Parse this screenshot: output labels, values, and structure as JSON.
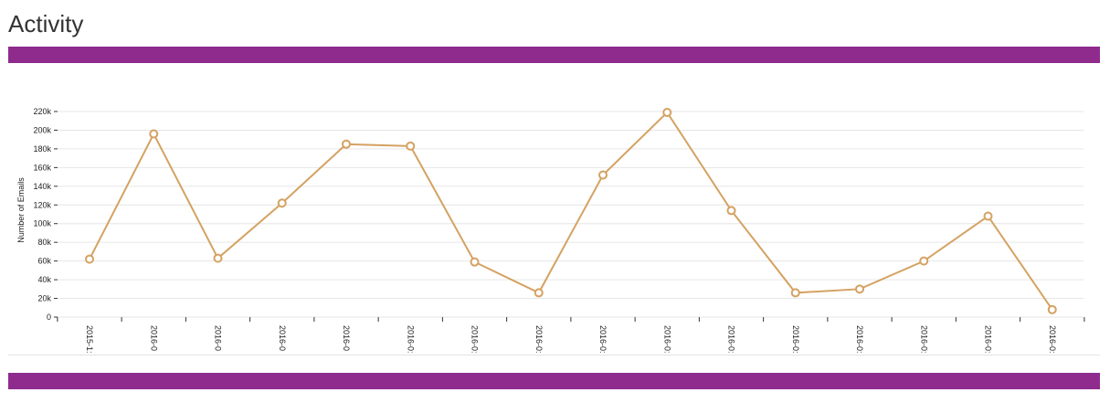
{
  "page": {
    "title": "Activity"
  },
  "colors": {
    "accent": "#8e2b8d",
    "line": "#d4a262",
    "grid": "#e6e6e6"
  },
  "chart_data": {
    "type": "line",
    "title": "",
    "xlabel": "",
    "ylabel": "Number of Emails",
    "ylim": [
      0,
      220000
    ],
    "yticks": [
      0,
      20000,
      40000,
      60000,
      80000,
      100000,
      120000,
      140000,
      160000,
      180000,
      200000,
      220000
    ],
    "ytick_labels": [
      "0",
      "20k",
      "40k",
      "60k",
      "80k",
      "100k",
      "120k",
      "140k",
      "160k",
      "180k",
      "200k",
      "220k"
    ],
    "categories": [
      "2015-1:",
      "2016-0",
      "2016-0",
      "2016-0",
      "2016-0",
      "2016-0:",
      "2016-0:",
      "2016-0:",
      "2016-0:",
      "2016-0:",
      "2016-0:",
      "2016-0:",
      "2016-0:",
      "2016-0:",
      "2016-0:",
      "2016-0:"
    ],
    "series": [
      {
        "name": "Number of Emails",
        "values": [
          62000,
          196000,
          63000,
          122000,
          185000,
          183000,
          59000,
          26000,
          152000,
          219000,
          114000,
          26000,
          30000,
          60000,
          108000,
          8000
        ]
      }
    ]
  }
}
